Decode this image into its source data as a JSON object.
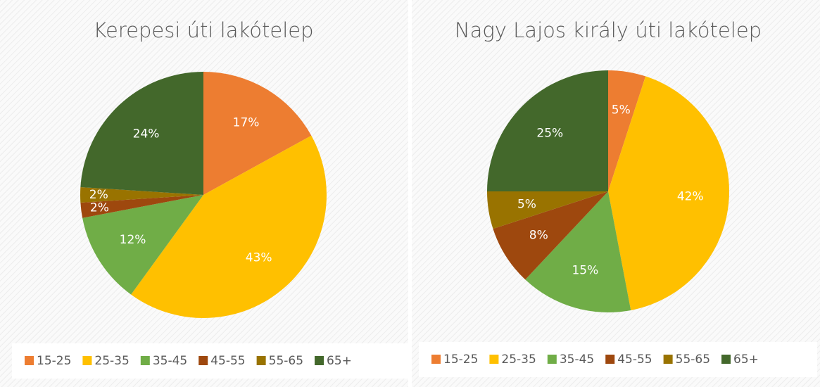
{
  "chart_data": [
    {
      "type": "pie",
      "title": "Kerepesi úti lakótelep",
      "categories": [
        "15-25",
        "25-35",
        "35-45",
        "45-55",
        "55-65",
        "65+"
      ],
      "values": [
        17,
        43,
        12,
        2,
        2,
        24
      ],
      "value_labels": [
        "17%",
        "43%",
        "12%",
        "2%",
        "2%",
        "24%"
      ],
      "colors": [
        "#ED7D31",
        "#FFC000",
        "#70AD47",
        "#9E480E",
        "#997300",
        "#43682B"
      ],
      "legend": "bottom"
    },
    {
      "type": "pie",
      "title": "Nagy Lajos király úti lakótelep",
      "categories": [
        "15-25",
        "25-35",
        "35-45",
        "45-55",
        "55-65",
        "65+"
      ],
      "values": [
        5,
        42,
        15,
        8,
        5,
        25
      ],
      "value_labels": [
        "5%",
        "42%",
        "15%",
        "8%",
        "5%",
        "25%"
      ],
      "colors": [
        "#ED7D31",
        "#FFC000",
        "#70AD47",
        "#9E480E",
        "#997300",
        "#43682B"
      ],
      "legend": "bottom"
    }
  ]
}
